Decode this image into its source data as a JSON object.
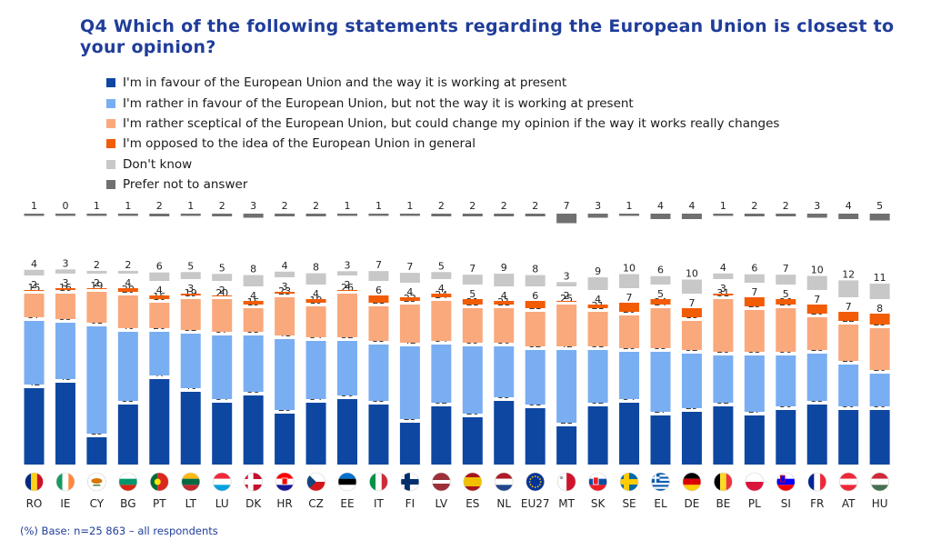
{
  "title": "Q4  Which of the following statements regarding the European Union is closest to your opinion?",
  "footnote": "(%)  Base: n=25 863 – all respondents",
  "chart_data": {
    "type": "bar",
    "stacked": true,
    "title": "Q4  Which of the following statements regarding the European Union is closest to your opinion?",
    "ylim": [
      0,
      100
    ],
    "legend_position": "top-left",
    "categories": [
      "RO",
      "IE",
      "CY",
      "BG",
      "PT",
      "LT",
      "LU",
      "DK",
      "HR",
      "CZ",
      "EE",
      "IT",
      "FI",
      "LV",
      "ES",
      "NL",
      "EU27",
      "MT",
      "SK",
      "SE",
      "EL",
      "DE",
      "BE",
      "PL",
      "SI",
      "FR",
      "AT",
      "HU"
    ],
    "series": [
      {
        "name": "I'm in favour of the European Union and the way it is working at present",
        "color": "#0d47a1",
        "values": [
          42,
          45,
          15,
          33,
          47,
          40,
          34,
          38,
          28,
          34,
          36,
          33,
          23,
          32,
          26,
          35,
          31,
          21,
          32,
          34,
          27,
          29,
          32,
          27,
          30,
          33,
          30,
          30
        ]
      },
      {
        "name": "I'm rather in favour of the European Union, but not the way it is working at present",
        "color": "#7aaef2",
        "values": [
          37,
          33,
          61,
          40,
          26,
          32,
          37,
          33,
          41,
          34,
          32,
          33,
          42,
          34,
          39,
          30,
          32,
          42,
          31,
          28,
          35,
          32,
          28,
          33,
          30,
          28,
          25,
          20
        ]
      },
      {
        "name": "I'm rather sceptical of the European Union, but could change my opinion if the way it works really changes",
        "color": "#f9a97c",
        "values": [
          15,
          16,
          19,
          20,
          16,
          19,
          20,
          15,
          23,
          19,
          26,
          21,
          23,
          24,
          21,
          21,
          21,
          25,
          21,
          20,
          24,
          18,
          31,
          25,
          26,
          20,
          22,
          25
        ]
      },
      {
        "name": "I'm opposed to the idea of the European Union in general",
        "color": "#f25c05",
        "values": [
          2,
          3,
          2,
          4,
          4,
          3,
          2,
          4,
          3,
          4,
          2,
          6,
          4,
          4,
          5,
          4,
          6,
          2,
          4,
          7,
          5,
          7,
          3,
          7,
          5,
          7,
          7,
          8
        ]
      },
      {
        "name": "Don't know",
        "color": "#c8c8c8",
        "values": [
          4,
          3,
          2,
          2,
          6,
          5,
          5,
          8,
          4,
          8,
          3,
          7,
          7,
          5,
          7,
          9,
          8,
          3,
          9,
          10,
          6,
          10,
          4,
          6,
          7,
          10,
          12,
          11
        ]
      },
      {
        "name": "Prefer not to answer",
        "color": "#707070",
        "values": [
          1,
          0,
          1,
          1,
          2,
          1,
          2,
          3,
          2,
          2,
          1,
          1,
          1,
          2,
          2,
          2,
          2,
          7,
          3,
          1,
          4,
          4,
          1,
          2,
          2,
          3,
          4,
          5
        ]
      }
    ],
    "flags": [
      "RO",
      "IE",
      "CY",
      "BG",
      "PT",
      "LT",
      "LU",
      "DK",
      "HR",
      "CZ",
      "EE",
      "IT",
      "FI",
      "LV",
      "ES",
      "NL",
      "EU27",
      "MT",
      "SK",
      "SE",
      "EL",
      "DE",
      "BE",
      "PL",
      "SI",
      "FR",
      "AT",
      "HU"
    ]
  }
}
